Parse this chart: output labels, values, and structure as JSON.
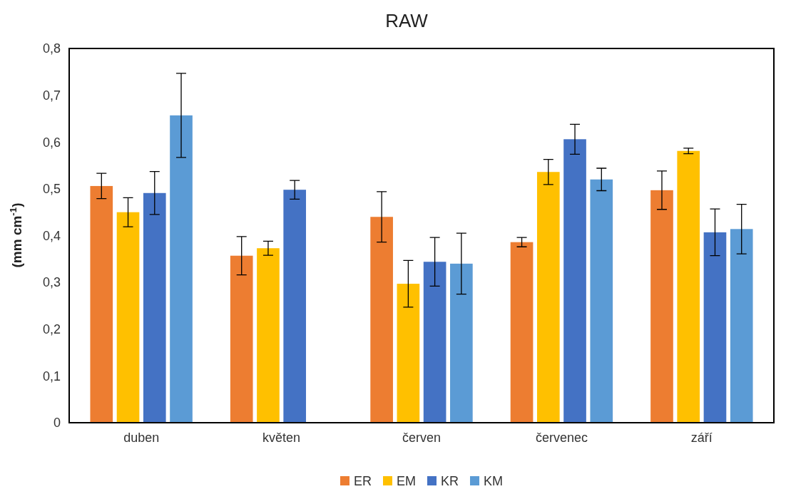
{
  "chart_data": {
    "type": "bar",
    "title": "RAW",
    "ylabel": "(mm cm$^{-1}$)",
    "categories": [
      "duben",
      "květen",
      "červen",
      "červenec",
      "září"
    ],
    "series": [
      {
        "name": "ER",
        "color": "#ed7d31",
        "values": [
          0.506,
          0.357,
          0.44,
          0.386,
          0.497
        ],
        "errors": [
          0.027,
          0.041,
          0.054,
          0.01,
          0.041
        ]
      },
      {
        "name": "EM",
        "color": "#ffc000",
        "values": [
          0.45,
          0.373,
          0.297,
          0.536,
          0.581
        ],
        "errors": [
          0.031,
          0.015,
          0.05,
          0.027,
          0.006
        ]
      },
      {
        "name": "KR",
        "color": "#4472c4",
        "values": [
          0.491,
          0.498,
          0.344,
          0.606,
          0.407
        ],
        "errors": [
          0.046,
          0.02,
          0.052,
          0.032,
          0.05
        ]
      },
      {
        "name": "KM",
        "color": "#5b9bd5",
        "values": [
          0.657,
          null,
          0.34,
          0.52,
          0.414
        ],
        "errors": [
          0.09,
          null,
          0.065,
          0.024,
          0.053
        ]
      }
    ],
    "ylim": [
      0,
      0.8
    ],
    "yticks": [
      {
        "value": 0,
        "label": "0"
      },
      {
        "value": 0.1,
        "label": "0,1"
      },
      {
        "value": 0.2,
        "label": "0,2"
      },
      {
        "value": 0.3,
        "label": "0,3"
      },
      {
        "value": 0.4,
        "label": "0,4"
      },
      {
        "value": 0.5,
        "label": "0,5"
      },
      {
        "value": 0.6,
        "label": "0,6"
      },
      {
        "value": 0.7,
        "label": "0,7"
      },
      {
        "value": 0.8,
        "label": "0,8"
      }
    ],
    "grid": false,
    "legend": "bottom"
  }
}
